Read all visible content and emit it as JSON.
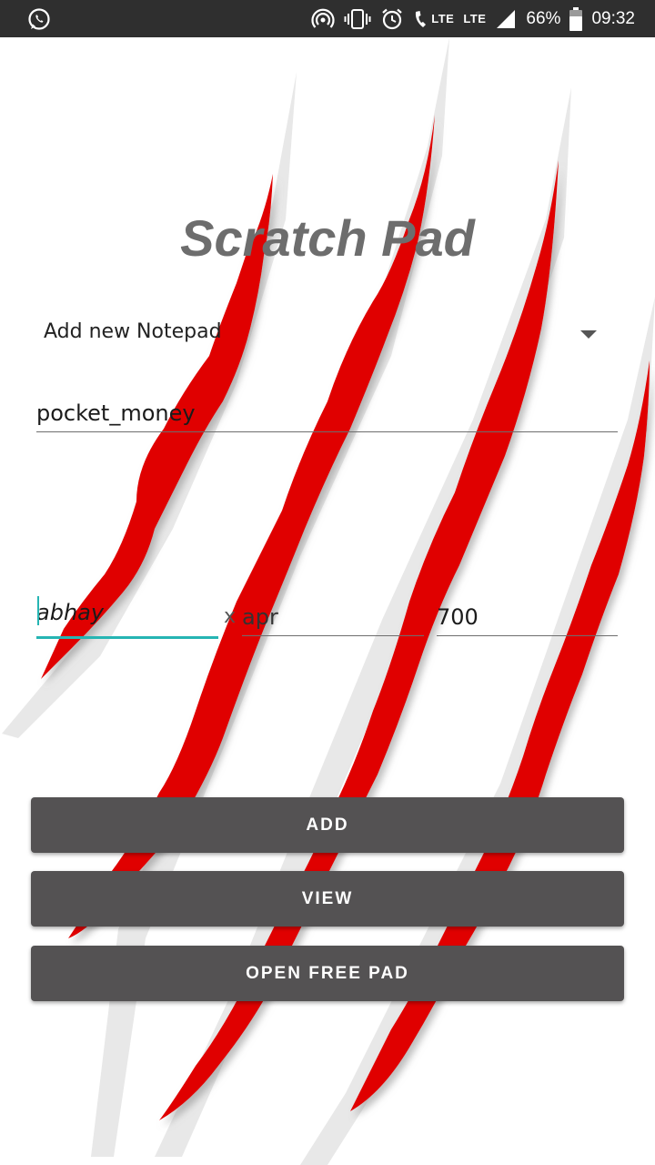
{
  "status_bar": {
    "left_icons": [
      "whatsapp-icon"
    ],
    "right_icons": [
      "hotspot-icon",
      "vibrate-icon",
      "alarm-icon",
      "volte-call-icon",
      "signal-icon",
      "battery-icon"
    ],
    "lte1": "LTE",
    "lte2": "LTE",
    "battery": "66%",
    "time": "09:32"
  },
  "app": {
    "title": "Scratch Pad",
    "spinner": {
      "selected": "Add new Notepad"
    },
    "notepad_name": "pocket_money",
    "entry": {
      "name": "abhay",
      "separator": "x",
      "month": "apr",
      "amount": "700"
    },
    "buttons": {
      "add": "ADD",
      "view": "VIEW",
      "open_free_pad": "OPEN FREE PAD"
    }
  },
  "colors": {
    "background": "#ffffff",
    "scratch": "#e00000",
    "button": "#545253",
    "title": "#6d6d6d",
    "accent": "#26b5b3"
  }
}
